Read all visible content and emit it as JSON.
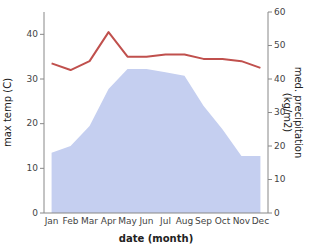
{
  "chart_data": {
    "type": "line",
    "categories": [
      "Jan",
      "Feb",
      "Mar",
      "Apr",
      "May",
      "Jun",
      "Jul",
      "Aug",
      "Sep",
      "Oct",
      "Nov",
      "Dec"
    ],
    "xlabel": "date (month)",
    "ylabel": "max temp (C)",
    "y2label": "med. precipitation\n(kg/m2)",
    "series": [
      {
        "type": "area",
        "axis": "y2",
        "color": "#c5cff0",
        "values": [
          18,
          20,
          26,
          37,
          43,
          43,
          42,
          41,
          32,
          25,
          17,
          17
        ]
      },
      {
        "type": "line",
        "color": "#c0504d",
        "values": [
          33.5,
          32.0,
          34.0,
          40.5,
          35.0,
          35.0,
          35.5,
          35.5,
          34.5,
          34.5,
          34.0,
          32.5
        ]
      }
    ],
    "ylim": [
      0,
      45
    ],
    "yticks": [
      0,
      10,
      20,
      30,
      40
    ],
    "y2lim": [
      0,
      60
    ],
    "y2ticks": [
      0,
      10,
      20,
      30,
      40,
      50,
      60
    ],
    "grid": false
  }
}
